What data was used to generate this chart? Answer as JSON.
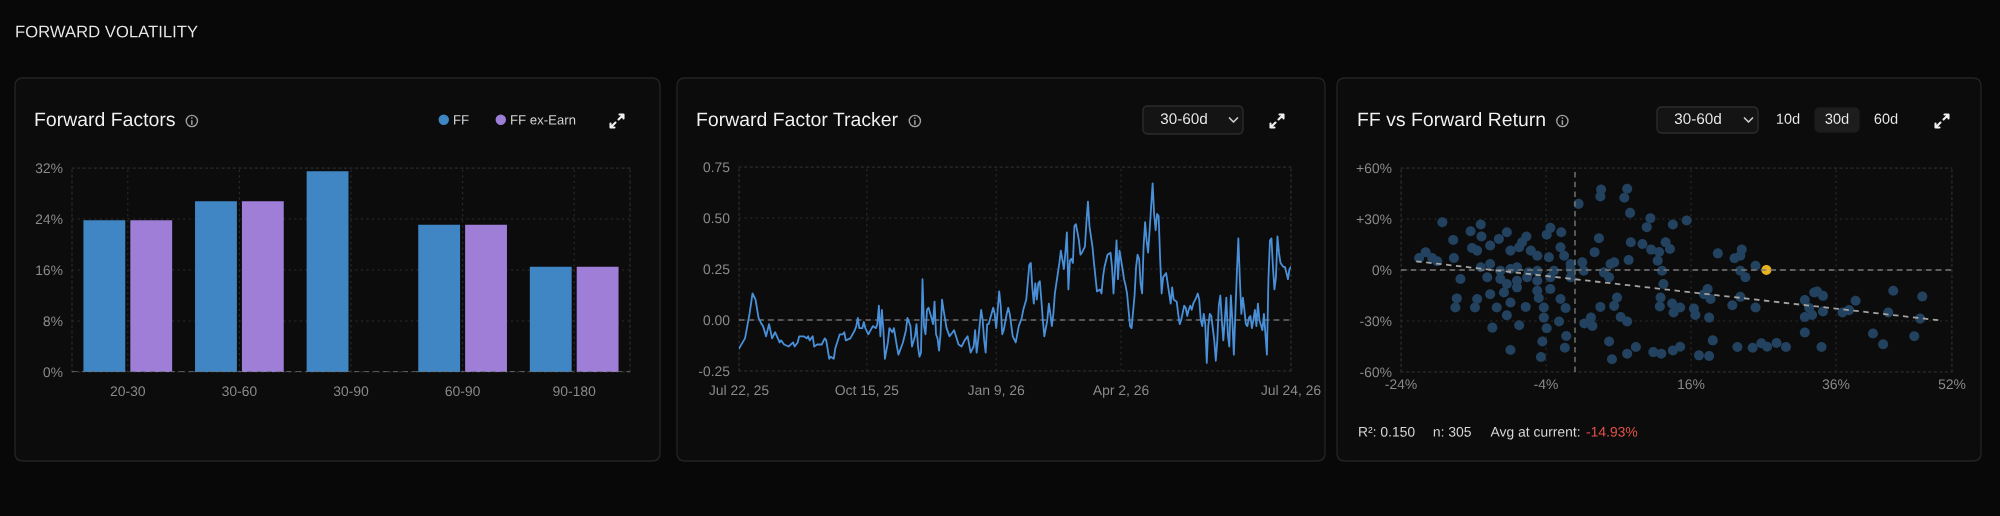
{
  "chart_data": [
    {
      "type": "bar",
      "title": "Forward Factors",
      "annotations": [
        "FORWARD VOLATILITY"
      ],
      "categories": [
        "20-30",
        "30-60",
        "30-90",
        "60-90",
        "90-180"
      ],
      "series": [
        {
          "name": "FF",
          "color": "#4086c4",
          "values": [
            23.8,
            26.8,
            31.5,
            23.1,
            16.5
          ]
        },
        {
          "name": "FF ex-Earn",
          "color": "#9e7ed6",
          "values": [
            23.8,
            26.8,
            null,
            23.1,
            16.5
          ]
        }
      ],
      "ylim": [
        0,
        32
      ],
      "yticks": [
        {
          "value": 0,
          "label": "0%"
        },
        {
          "value": 8,
          "label": "8%"
        },
        {
          "value": 16,
          "label": "16%"
        },
        {
          "value": 24,
          "label": "24%"
        },
        {
          "value": 32,
          "label": "32%"
        }
      ],
      "grid": true,
      "legend": "top right",
      "ref_lines": [
        {
          "axis": "y",
          "value": 0,
          "color": "#6e6e6e",
          "line_style": "dashed"
        }
      ]
    },
    {
      "type": "line",
      "title": "Forward Factor Tracker",
      "annotations": [
        "30-60d"
      ],
      "color": "#4a90d9",
      "x": [
        "2025-07-22",
        "2025-07-26",
        "2025-07-29",
        "2025-07-31",
        "2025-08-02",
        "2025-08-04",
        "2025-08-06",
        "2025-08-07",
        "2025-08-09",
        "2025-08-11",
        "2025-08-13",
        "2025-08-15",
        "2025-08-18",
        "2025-08-19",
        "2025-08-21",
        "2025-08-24",
        "2025-08-27",
        "2025-08-28",
        "2025-08-30",
        "2025-08-31",
        "2025-09-03",
        "2025-09-05",
        "2025-09-06",
        "2025-09-07",
        "2025-09-09",
        "2025-09-10",
        "2025-09-12",
        "2025-09-15",
        "2025-09-17",
        "2025-09-18",
        "2025-09-20",
        "2025-09-21",
        "2025-09-23",
        "2025-09-24",
        "2025-09-27",
        "2025-09-29",
        "2025-09-30",
        "2025-10-01",
        "2025-10-04",
        "2025-10-07",
        "2025-10-08",
        "2025-10-09",
        "2025-10-10",
        "2025-10-12",
        "2025-10-13",
        "2025-10-14",
        "2025-10-16",
        "2025-10-19",
        "2025-10-21",
        "2025-10-22",
        "2025-10-23",
        "2025-10-24",
        "2025-10-25",
        "2025-10-26",
        "2025-10-27",
        "2025-10-29",
        "2025-10-30",
        "2025-11-01",
        "2025-11-02",
        "2025-11-04",
        "2025-11-05",
        "2025-11-08",
        "2025-11-10",
        "2025-11-11",
        "2025-11-13",
        "2025-11-14",
        "2025-11-16",
        "2025-11-17",
        "2025-11-18",
        "2025-11-19",
        "2025-11-20",
        "2025-11-21",
        "2025-11-22",
        "2025-11-23",
        "2025-11-24",
        "2025-11-25",
        "2025-11-27",
        "2025-11-28",
        "2025-11-29",
        "2025-11-30",
        "2025-12-01",
        "2025-12-02",
        "2025-12-03",
        "2025-12-04",
        "2025-12-05",
        "2025-12-07",
        "2025-12-09",
        "2025-12-12",
        "2025-12-15",
        "2025-12-17",
        "2025-12-19",
        "2025-12-21",
        "2025-12-23",
        "2025-12-25",
        "2025-12-26",
        "2025-12-27",
        "2025-12-28",
        "2025-12-30",
        "2025-12-31",
        "2026-01-01",
        "2026-01-02",
        "2026-01-03",
        "2026-01-04",
        "2026-01-07",
        "2026-01-08",
        "2026-01-09",
        "2026-01-11",
        "2026-01-12",
        "2026-01-13",
        "2026-01-14",
        "2026-01-16",
        "2026-01-17",
        "2026-01-18",
        "2026-01-20",
        "2026-01-22",
        "2026-01-24",
        "2026-01-26",
        "2026-01-27",
        "2026-01-29",
        "2026-01-31",
        "2026-02-01",
        "2026-02-02",
        "2026-02-03",
        "2026-02-04",
        "2026-02-05",
        "2026-02-06",
        "2026-02-07",
        "2026-02-08",
        "2026-02-09",
        "2026-02-10",
        "2026-02-12",
        "2026-02-13",
        "2026-02-14",
        "2026-02-15",
        "2026-02-16",
        "2026-02-17",
        "2026-02-19",
        "2026-02-20",
        "2026-02-21",
        "2026-02-23",
        "2026-02-24",
        "2026-02-25",
        "2026-02-26",
        "2026-02-27",
        "2026-02-28",
        "2026-03-01",
        "2026-03-02",
        "2026-03-03",
        "2026-03-05",
        "2026-03-06",
        "2026-03-07",
        "2026-03-09",
        "2026-03-10",
        "2026-03-11",
        "2026-03-12",
        "2026-03-14",
        "2026-03-15",
        "2026-03-16",
        "2026-03-17",
        "2026-03-19",
        "2026-03-20",
        "2026-03-21",
        "2026-03-22",
        "2026-03-24",
        "2026-03-26",
        "2026-03-27",
        "2026-03-28",
        "2026-03-29",
        "2026-03-30",
        "2026-03-31",
        "2026-04-01",
        "2026-04-03",
        "2026-04-04",
        "2026-04-05",
        "2026-04-06",
        "2026-04-07",
        "2026-04-08",
        "2026-04-09",
        "2026-04-11",
        "2026-04-12",
        "2026-04-13",
        "2026-04-14",
        "2026-04-15",
        "2026-04-16",
        "2026-04-17",
        "2026-04-18",
        "2026-04-19",
        "2026-04-20",
        "2026-04-21",
        "2026-04-23",
        "2026-04-24",
        "2026-04-25",
        "2026-04-26",
        "2026-04-27",
        "2026-04-28",
        "2026-04-29",
        "2026-04-30",
        "2026-05-01",
        "2026-05-02",
        "2026-05-04",
        "2026-05-05",
        "2026-05-06",
        "2026-05-07",
        "2026-05-09",
        "2026-05-10",
        "2026-05-11",
        "2026-05-12",
        "2026-05-14",
        "2026-05-15",
        "2026-05-16",
        "2026-05-17",
        "2026-05-18",
        "2026-05-19",
        "2026-05-20",
        "2026-05-22",
        "2026-05-23",
        "2026-05-24",
        "2026-05-25",
        "2026-05-26",
        "2026-05-27",
        "2026-05-28",
        "2026-05-29",
        "2026-05-30",
        "2026-05-31",
        "2026-06-01",
        "2026-06-03",
        "2026-06-04",
        "2026-06-05",
        "2026-06-06",
        "2026-06-07",
        "2026-06-08",
        "2026-06-09",
        "2026-06-10",
        "2026-06-11",
        "2026-06-12",
        "2026-06-13",
        "2026-06-14",
        "2026-06-15",
        "2026-06-16",
        "2026-06-17",
        "2026-06-18",
        "2026-06-19",
        "2026-06-20",
        "2026-06-21",
        "2026-06-22",
        "2026-06-23",
        "2026-06-24",
        "2026-06-25",
        "2026-06-26",
        "2026-06-27",
        "2026-06-28",
        "2026-06-29",
        "2026-06-30",
        "2026-07-01",
        "2026-07-02",
        "2026-07-03",
        "2026-07-05",
        "2026-07-06",
        "2026-07-07",
        "2026-07-08",
        "2026-07-09",
        "2026-07-10",
        "2026-07-11",
        "2026-07-12",
        "2026-07-13",
        "2026-07-14",
        "2026-07-15",
        "2026-07-16",
        "2026-07-17",
        "2026-07-18",
        "2026-07-19",
        "2026-07-20",
        "2026-07-22",
        "2026-07-23",
        "2026-07-24"
      ],
      "values": [
        -0.14,
        -0.09,
        0.03,
        0.13,
        0.1,
        0.01,
        -0.02,
        -0.03,
        -0.08,
        -0.02,
        -0.09,
        -0.06,
        -0.11,
        -0.1,
        -0.12,
        -0.13,
        -0.11,
        -0.13,
        -0.11,
        -0.08,
        -0.08,
        -0.09,
        -0.08,
        -0.1,
        -0.08,
        -0.13,
        -0.12,
        -0.12,
        -0.09,
        -0.1,
        -0.19,
        -0.18,
        -0.19,
        -0.14,
        -0.07,
        -0.07,
        -0.06,
        -0.1,
        -0.09,
        -0.05,
        -0.03,
        0.01,
        -0.04,
        -0.04,
        -0.01,
        -0.04,
        -0.07,
        -0.03,
        -0.04,
        -0.02,
        0.07,
        -0.08,
        0.05,
        -0.05,
        -0.19,
        -0.11,
        -0.04,
        -0.06,
        -0.04,
        -0.13,
        -0.17,
        -0.11,
        -0.05,
        0.01,
        -0.03,
        -0.13,
        -0.08,
        -0.02,
        -0.13,
        -0.18,
        -0.16,
        0.2,
        -0.03,
        -0.07,
        0.05,
        0.06,
        0.01,
        -0.02,
        0.09,
        -0.07,
        -0.09,
        -0.15,
        -0.07,
        0.1,
        0.05,
        -0.04,
        -0.08,
        -0.05,
        -0.12,
        -0.13,
        -0.1,
        -0.08,
        -0.16,
        -0.13,
        -0.05,
        -0.16,
        -0.1,
        0.05,
        0.0,
        -0.1,
        -0.16,
        -0.02,
        -0.02,
        0.06,
        0.03,
        -0.04,
        0.14,
        0.07,
        -0.07,
        -0.05,
        0.03,
        0.06,
        0.03,
        -0.08,
        -0.11,
        -0.03,
        0.01,
        0.05,
        0.1,
        0.27,
        0.28,
        0.16,
        0.08,
        0.18,
        0.1,
        0.18,
        0.19,
        0.1,
        0.0,
        -0.08,
        0.0,
        0.08,
        0.03,
        -0.03,
        0.03,
        0.13,
        0.23,
        0.28,
        0.34,
        0.25,
        0.33,
        0.43,
        0.15,
        0.29,
        0.3,
        0.28,
        0.46,
        0.47,
        0.39,
        0.32,
        0.33,
        0.36,
        0.48,
        0.58,
        0.46,
        0.36,
        0.28,
        0.21,
        0.14,
        0.15,
        0.13,
        0.21,
        0.26,
        0.32,
        0.33,
        0.26,
        0.13,
        0.25,
        0.39,
        0.2,
        0.34,
        0.25,
        0.2,
        0.17,
        0.13,
        0.05,
        -0.03,
        -0.04,
        0.12,
        0.26,
        0.32,
        0.3,
        0.18,
        0.13,
        0.36,
        0.48,
        0.39,
        0.33,
        0.44,
        0.67,
        0.52,
        0.44,
        0.52,
        0.51,
        0.3,
        0.13,
        0.21,
        0.22,
        0.23,
        0.13,
        0.08,
        0.16,
        0.1,
        0.09,
        0.03,
        -0.02,
        0.0,
        0.07,
        0.06,
        0.02,
        0.05,
        0.07,
        0.05,
        0.08,
        0.11,
        0.13,
        0.1,
        0.0,
        -0.03,
        0.03,
        -0.02,
        -0.21,
        -0.03,
        0.03,
        0.02,
        -0.1,
        -0.2,
        -0.1,
        0.07,
        0.12,
        0.0,
        -0.1,
        0.0,
        0.11,
        -0.07,
        -0.13,
        0.12,
        0.0,
        -0.17,
        0.03,
        0.23,
        0.4,
        0.2,
        0.03,
        0.11,
        0.05,
        -0.02,
        -0.03,
        0.01,
        0.02,
        -0.04,
        0.0,
        0.05,
        -0.03,
        0.08,
        0.0,
        -0.05,
        0.03,
        -0.07,
        -0.17,
        0.2,
        0.39,
        0.4,
        0.26,
        0.15,
        0.21,
        0.41,
        0.33,
        0.28,
        0.27,
        0.26,
        0.26,
        0.2,
        0.25,
        0.26
      ],
      "xlim": [
        "2025-07-22",
        "2026-07-24"
      ],
      "xticks": [
        {
          "value": "2025-07-22",
          "label": "Jul 22, 25"
        },
        {
          "value": "2025-10-15",
          "label": "Oct 15, 25"
        },
        {
          "value": "2026-01-09",
          "label": "Jan 9, 26"
        },
        {
          "value": "2026-04-02",
          "label": "Apr 2, 26"
        },
        {
          "value": "2026-07-24",
          "label": "Jul 24, 26"
        }
      ],
      "ylim": [
        -0.25,
        0.75
      ],
      "yticks": [
        {
          "value": -0.25,
          "label": "-0.25"
        },
        {
          "value": 0,
          "label": "0.00"
        },
        {
          "value": 0.25,
          "label": "0.25"
        },
        {
          "value": 0.5,
          "label": "0.50"
        },
        {
          "value": 0.75,
          "label": "0.75"
        }
      ],
      "grid": true,
      "ref_lines": [
        {
          "axis": "y",
          "value": 0,
          "color": "#6e6e6e",
          "line_style": "dashed"
        }
      ]
    },
    {
      "type": "scatter",
      "title": "FF vs Forward Return",
      "annotations": [
        "30-60d",
        "10d",
        "30d",
        "60d",
        "R²: 0.150",
        "n: 305",
        "Avg at current:",
        "-14.93%"
      ],
      "series": [
        {
          "color": "#22425f",
          "marker": "circle",
          "x": [
            3.6,
            3.5,
            7.2,
            6.8,
            0.5,
            7.6,
            10.4,
            9.9,
            -18.3,
            -13.0,
            -14.4,
            -16.8,
            -12.9,
            -9.4,
            -6.7,
            -3.4,
            -3.9,
            -1.9,
            3.3,
            7.7,
            9.3,
            10.5,
            11.6,
            12.5,
            -20.6,
            -21.5,
            -19.7,
            -19.0,
            -16.7,
            -14.2,
            -13.5,
            -11.7,
            -10.5,
            -8.9,
            -7.7,
            -7.3,
            -6.1,
            -5.2,
            -3.6,
            -2.0,
            -1.5,
            -0.6,
            1.0,
            2.7,
            5.4,
            7.4,
            11.4,
            -13.0,
            -11.7,
            -10.3,
            -8.9,
            -8.0,
            -6.4,
            -5.2,
            -2.9,
            -0.6,
            1.2,
            4.0,
            4.9,
            -15.8,
            -12.1,
            -10.3,
            -9.4,
            -8.0,
            -6.6,
            -5.2,
            -3.4,
            -0.6,
            4.7,
            -11.7,
            -9.8,
            -8.0,
            -5.2,
            -3.4,
            -2.0,
            -5.0,
            -16.3,
            -13.5,
            -16.5,
            -13.8,
            -10.8,
            -8.9,
            -6.8,
            -4.3,
            -1.3,
            3.5,
            5.4,
            5.8,
            -9.4,
            -4.3,
            -2.2,
            1.3,
            2.2,
            2.4,
            6.3,
            7.2,
            -11.4,
            -7.7,
            -3.9,
            -1.2,
            -4.5,
            -1.4,
            -8.9,
            -4.7,
            4.7,
            8.4,
            7.2,
            5.1,
            10.8,
            11.9,
            11.8,
            11.7,
            15.4,
            13.5,
            13.1,
            19.7,
            23.0,
            22.8,
            22.0,
            24.9,
            22.8,
            12.0,
            23.5,
            12.2,
            17.8,
            18.7,
            18.3,
            13.4,
            14.5,
            16.4,
            16.6,
            18.5,
            13.6,
            21.7,
            22.8,
            24.9,
            31.7,
            33.0,
            33.4,
            34.2,
            32.3,
            34.2,
            31.7,
            32.7,
            36.9,
            37.8,
            38.7,
            43.2,
            43.9,
            47.9,
            47.6,
            31.7,
            41.1,
            42.5,
            46.8,
            19.0,
            14.5,
            13.5,
            17.1,
            18.5,
            22.4,
            24.5,
            25.7,
            26.5,
            27.8,
            29.1,
            34.0
          ],
          "values": [
            47.4,
            43.3,
            47.8,
            42.5,
            38.9,
            33.6,
            30.5,
            25.2,
            28.1,
            26.8,
            22.8,
            17.7,
            19.7,
            22.2,
            19.7,
            24.8,
            20.8,
            22.2,
            18.7,
            16.3,
            15.3,
            12.0,
            10.6,
            16.3,
            10.4,
            7.1,
            7.1,
            5.1,
            7.1,
            13.0,
            11.4,
            14.4,
            18.3,
            11.4,
            13.4,
            16.3,
            11.4,
            8.4,
            7.5,
            13.4,
            8.4,
            3.5,
            4.5,
            10.4,
            4.5,
            5.9,
            5.5,
            1.6,
            3.5,
            -0.4,
            0.6,
            1.6,
            -1.4,
            -0.4,
            -0.4,
            0.6,
            -0.4,
            -1.4,
            3.5,
            -5.3,
            -4.3,
            -5.3,
            -8.2,
            -6.3,
            -4.3,
            -6.3,
            -4.3,
            -4.3,
            -4.3,
            -14.2,
            -13.2,
            -10.2,
            -12.2,
            -11.2,
            -17.1,
            -16.5,
            -16.7,
            -17.1,
            -22.1,
            -22.1,
            -22.1,
            -19.1,
            -21.7,
            -22.1,
            -22.4,
            -21.7,
            -21.1,
            -16.2,
            -26.6,
            -28.0,
            -30.3,
            -31.5,
            -28.0,
            -32.9,
            -27.6,
            -30.3,
            -33.9,
            -32.5,
            -34.3,
            -38.8,
            -42.1,
            -45.7,
            -47.1,
            -51.2,
            -42.1,
            -45.3,
            -49.2,
            -52.5,
            -48.3,
            -49.2,
            -16.2,
            -21.5,
            29.1,
            26.8,
            12.4,
            9.8,
            12.0,
            8.4,
            6.9,
            2.5,
            -0.4,
            -0.4,
            -4.3,
            -8.2,
            -14.2,
            -17.1,
            -11.2,
            -19.7,
            -22.1,
            -22.7,
            -26.4,
            -28.0,
            -25.0,
            -20.7,
            -15.8,
            -22.1,
            -17.7,
            -13.2,
            -12.6,
            -15.2,
            -22.4,
            -24.4,
            -27.6,
            -26.4,
            -25.0,
            -23.6,
            -18.1,
            -25.0,
            -12.2,
            -15.6,
            -28.6,
            -36.8,
            -37.4,
            -43.7,
            -39.0,
            -41.4,
            -45.1,
            -47.3,
            -50.2,
            -50.6,
            -45.3,
            -45.7,
            -43.1,
            -45.1,
            -42.9,
            -45.3,
            -45.3
          ]
        },
        {
          "type": "line",
          "color": "#a3a3a3",
          "line_style": "dashed",
          "x": [
            -21.9,
            50.1
          ],
          "values": [
            5.1,
            -29.5
          ]
        },
        {
          "color": "#e8b321",
          "marker": "circle",
          "x": [
            26.4
          ],
          "values": [
            0
          ]
        }
      ],
      "xlim": [
        -24,
        52
      ],
      "xticks": [
        {
          "value": -24,
          "label": "-24%"
        },
        {
          "value": -4,
          "label": "-4%"
        },
        {
          "value": 16,
          "label": "16%"
        },
        {
          "value": 36,
          "label": "36%"
        },
        {
          "value": 52,
          "label": "52%"
        }
      ],
      "ylim": [
        -60,
        60
      ],
      "yticks": [
        {
          "value": -60,
          "label": "-60%"
        },
        {
          "value": -30,
          "label": "-30%"
        },
        {
          "value": 0,
          "label": "0%"
        },
        {
          "value": 30,
          "label": "+30%"
        },
        {
          "value": 60,
          "label": "+60%"
        }
      ],
      "grid": true,
      "ref_lines": [
        {
          "axis": "x",
          "value": 0,
          "color": "#7a7a7a",
          "line_style": "dashed"
        },
        {
          "axis": "y",
          "value": 0,
          "color": "#7a7a7a",
          "line_style": "dashed"
        }
      ]
    }
  ]
}
